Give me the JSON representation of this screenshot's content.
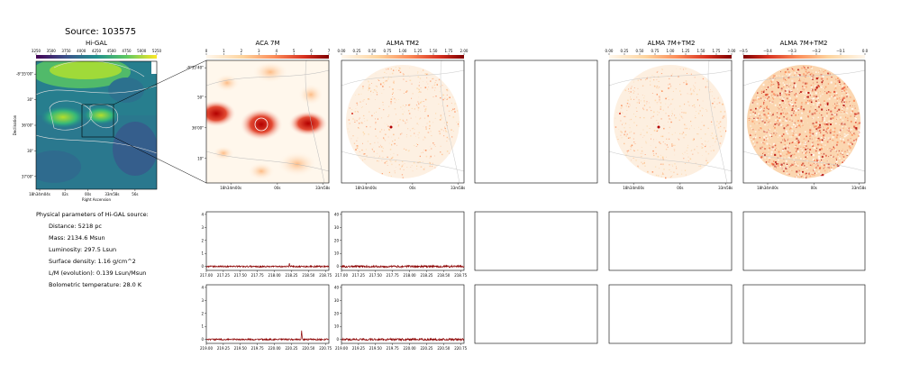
{
  "header": {
    "source_label": "Source: 103575"
  },
  "panels": {
    "higal": {
      "title": "Hi-GAL",
      "colorbar_ticks": [
        "3250",
        "3500",
        "3750",
        "4000",
        "4250",
        "4500",
        "4750",
        "5000",
        "5250"
      ],
      "y_ticks": [
        "-8°35'00\"",
        "30\"",
        "36'00\"",
        "30\"",
        "37'00\""
      ],
      "x_ticks": [
        "18h34m04s",
        "02s",
        "00s",
        "33m58s",
        "56s"
      ],
      "xlabel": "Right Ascension",
      "ylabel": "Declination"
    },
    "aca": {
      "title": "ACA 7M",
      "colorbar_ticks": [
        "0",
        "1",
        "2",
        "3",
        "4",
        "5",
        "6",
        "7"
      ],
      "y_ticks": [
        "-8°35'40\"",
        "50\"",
        "36'00\"",
        "10\""
      ],
      "x_ticks": [
        "18h34m00s",
        "00s",
        "33m58s"
      ]
    },
    "tm2": {
      "title": "ALMA TM2",
      "colorbar_ticks": [
        "0.00",
        "0.25",
        "0.50",
        "0.75",
        "1.00",
        "1.25",
        "1.50",
        "1.75",
        "2.00"
      ],
      "x_ticks": [
        "18h34m00s",
        "00s",
        "33m58s"
      ]
    },
    "combo": {
      "title": "ALMA 7M+TM2",
      "colorbar_ticks": [
        "0.00",
        "0.25",
        "0.50",
        "0.75",
        "1.00",
        "1.25",
        "1.50",
        "1.75",
        "2.00"
      ],
      "x_ticks": [
        "18h34m00s",
        "00s",
        "33m58s"
      ]
    },
    "resid": {
      "title": "ALMA 7M+TM2",
      "colorbar_ticks": [
        "−0.5",
        "−0.4",
        "−0.3",
        "−0.2",
        "−0.1",
        "0.0"
      ],
      "x_ticks": [
        "18h34m00s",
        "00s",
        "33m58s"
      ]
    }
  },
  "params": {
    "heading": "Physical parameters of Hi-GAL source:",
    "lines": [
      "Distance: 5218 pc",
      "Mass: 2134.6 Msun",
      "Luminosity: 297.5 Lsun",
      "Surface density: 1.16 g/cm^2",
      "L/M (evolution): 0.139 Lsun/Msun",
      "Bolometric temperature: 28.0 K"
    ]
  },
  "colors": {
    "spectrum_line": "#8b0000",
    "contour": "#cccccc",
    "viridis": [
      "#440154",
      "#3b528b",
      "#21908d",
      "#5dc962",
      "#fde725"
    ],
    "orrd": [
      "#fff7ec",
      "#fdd49e",
      "#fc8d59",
      "#d7301f",
      "#7f0000"
    ]
  },
  "chart_data": [
    {
      "type": "line",
      "name": "aca-spectrum-row1",
      "x_ticks": [
        217.0,
        217.25,
        217.5,
        217.75,
        218.0,
        218.25,
        218.5,
        218.75
      ],
      "xlim": [
        217.0,
        218.8
      ],
      "y_ticks": [
        0,
        1,
        2,
        3,
        4
      ],
      "ylim": [
        -0.3,
        4.2
      ],
      "baseline": 0,
      "noise": 0.06,
      "peaks": [
        {
          "x": 218.22,
          "y": 0.25
        }
      ]
    },
    {
      "type": "line",
      "name": "tm2-spectrum-row1",
      "x_ticks": [
        217.0,
        217.25,
        217.5,
        217.75,
        218.0,
        218.25,
        218.5,
        218.75
      ],
      "xlim": [
        217.0,
        218.8
      ],
      "y_ticks": [
        0,
        10,
        20,
        30,
        40
      ],
      "ylim": [
        -3,
        42
      ],
      "baseline": 0,
      "noise": 0.8,
      "peaks": []
    },
    {
      "type": "line",
      "name": "aca-spectrum-row2",
      "x_ticks": [
        219.0,
        219.25,
        219.5,
        219.75,
        220.0,
        220.25,
        220.5,
        220.75
      ],
      "xlim": [
        219.0,
        220.8
      ],
      "y_ticks": [
        0,
        1,
        2,
        3,
        4
      ],
      "ylim": [
        -0.3,
        4.2
      ],
      "baseline": 0,
      "noise": 0.06,
      "peaks": [
        {
          "x": 220.4,
          "y": 0.7
        }
      ]
    },
    {
      "type": "line",
      "name": "tm2-spectrum-row2",
      "x_ticks": [
        219.0,
        219.25,
        219.5,
        219.75,
        220.0,
        220.25,
        220.5,
        220.75
      ],
      "xlim": [
        219.0,
        220.8
      ],
      "y_ticks": [
        0,
        10,
        20,
        30,
        40
      ],
      "ylim": [
        -3,
        42
      ],
      "baseline": 0,
      "noise": 0.8,
      "peaks": []
    }
  ]
}
